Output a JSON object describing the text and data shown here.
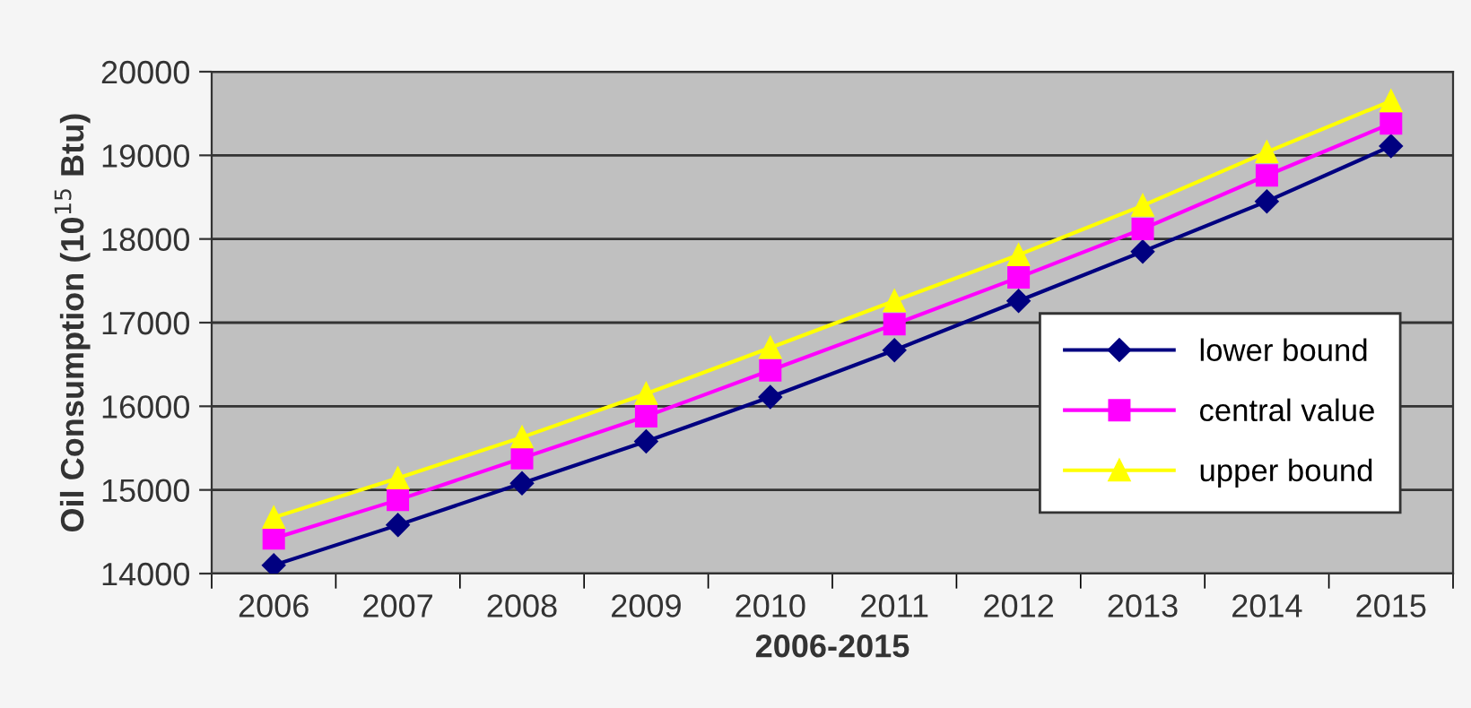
{
  "chart_data": {
    "type": "line",
    "xlabel": "2006-2015",
    "ylabel": "Oil Consumption (10$^{15}$ Btu)",
    "categories": [
      "2006",
      "2007",
      "2008",
      "2009",
      "2010",
      "2011",
      "2012",
      "2013",
      "2014",
      "2015"
    ],
    "series": [
      {
        "name": "lower bound",
        "color": "#000080",
        "marker": "diamond",
        "values": [
          14100,
          14580,
          15080,
          15580,
          16110,
          16670,
          17260,
          17850,
          18450,
          19110
        ]
      },
      {
        "name": "central value",
        "color": "#ff00ff",
        "marker": "square",
        "values": [
          14420,
          14880,
          15380,
          15880,
          16430,
          16980,
          17540,
          18120,
          18760,
          19380
        ]
      },
      {
        "name": "upper bound",
        "color": "#ffff00",
        "marker": "triangle",
        "values": [
          14670,
          15140,
          15630,
          16150,
          16700,
          17260,
          17810,
          18400,
          19040,
          19650
        ]
      }
    ],
    "ylim": [
      14000,
      20000
    ],
    "yticks": [
      14000,
      15000,
      16000,
      17000,
      18000,
      19000,
      20000
    ],
    "grid": "y",
    "legend": "right",
    "line_style": "solid"
  }
}
